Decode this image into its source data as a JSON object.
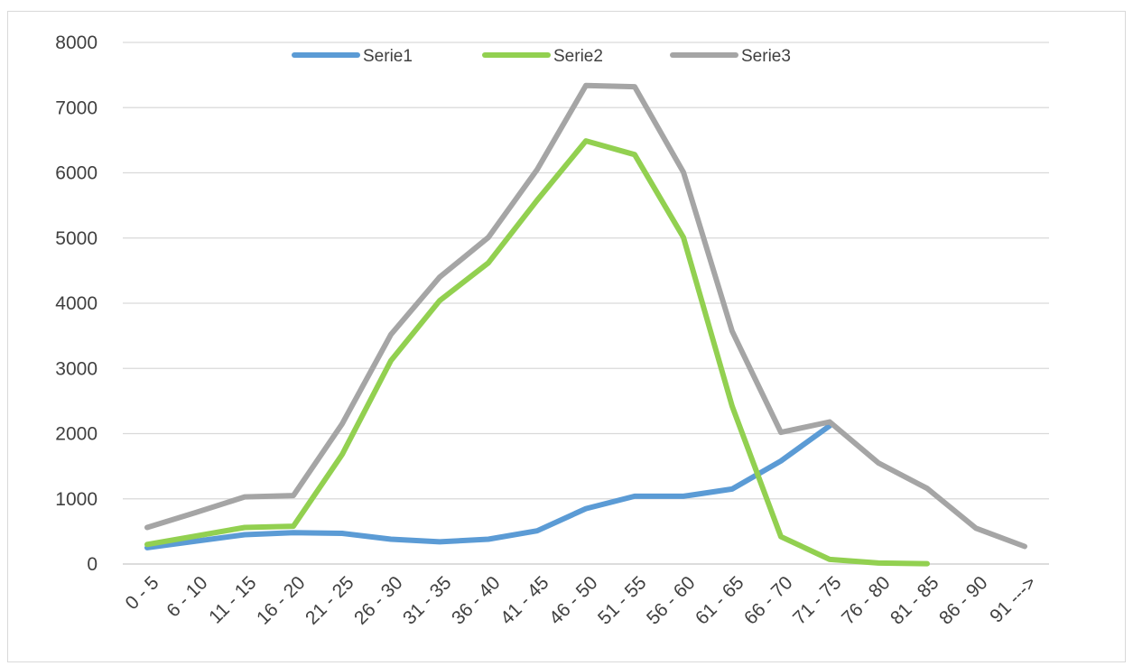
{
  "chart_data": {
    "type": "line",
    "title": "",
    "xlabel": "",
    "ylabel": "",
    "categories": [
      "0 - 5",
      "6 - 10",
      "11 - 15",
      "16 - 20",
      "21 - 25",
      "26 - 30",
      "31 - 35",
      "36 - 40",
      "41 - 45",
      "46 - 50",
      "51 - 55",
      "56 - 60",
      "61 - 65",
      "66 - 70",
      "71 - 75",
      "76 - 80",
      "81 - 85",
      "86 - 90",
      "91 --->"
    ],
    "ylim": [
      0,
      8000
    ],
    "yticks": [
      0,
      1000,
      2000,
      3000,
      4000,
      5000,
      6000,
      7000,
      8000
    ],
    "grid": true,
    "legend_position": "top-center",
    "series": [
      {
        "name": "Serie1",
        "color": "#5b9bd5",
        "values": [
          250,
          350,
          450,
          480,
          470,
          380,
          340,
          380,
          510,
          850,
          1040,
          1040,
          1150,
          1580,
          2120,
          null,
          null,
          null,
          null
        ]
      },
      {
        "name": "Serie2",
        "color": "#92d050",
        "values": [
          300,
          430,
          560,
          580,
          1680,
          3120,
          4040,
          4620,
          5580,
          6490,
          6280,
          5010,
          2420,
          420,
          70,
          15,
          5,
          null,
          null
        ]
      },
      {
        "name": "Serie3",
        "color": "#a5a5a5",
        "values": [
          560,
          790,
          1030,
          1050,
          2150,
          3520,
          4400,
          5010,
          6050,
          7340,
          7320,
          6010,
          3570,
          2020,
          2180,
          1550,
          1160,
          550,
          270
        ]
      }
    ]
  }
}
